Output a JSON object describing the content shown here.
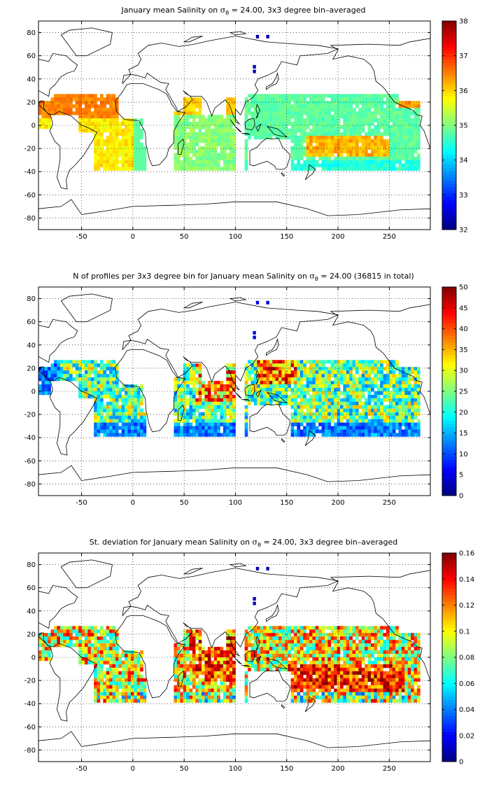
{
  "chart_data": [
    {
      "type": "heatmap",
      "title": {
        "pre": "January mean Salinity on ",
        "sym": "σ",
        "sub": "θ",
        "post": " = 24.00, 3x3 degree bin–averaged"
      },
      "x_ticks": [
        "-50",
        "0",
        "50",
        "100",
        "150",
        "200",
        "250"
      ],
      "y_ticks": [
        "80",
        "60",
        "40",
        "20",
        "0",
        "-20",
        "-40",
        "-60",
        "-80"
      ],
      "xlim": [
        -92,
        290
      ],
      "ylim": [
        -90,
        90
      ],
      "colorbar": {
        "min": 32,
        "max": 38,
        "ticks": [
          "38",
          "37",
          "36",
          "35",
          "34",
          "33",
          "32"
        ]
      },
      "colormap": "jet",
      "field": "salinity"
    },
    {
      "type": "heatmap",
      "title": {
        "pre": "N of profiles per 3x3 degree bin for January mean Salinity on ",
        "sym": "σ",
        "sub": "θ",
        "post": " = 24.00 (36815 in total)"
      },
      "x_ticks": [
        "-50",
        "0",
        "50",
        "100",
        "150",
        "200",
        "250"
      ],
      "y_ticks": [
        "80",
        "60",
        "40",
        "20",
        "0",
        "-20",
        "-40",
        "-60",
        "-80"
      ],
      "xlim": [
        -92,
        290
      ],
      "ylim": [
        -90,
        90
      ],
      "colorbar": {
        "min": 0,
        "max": 50,
        "ticks": [
          "50",
          "45",
          "40",
          "35",
          "30",
          "25",
          "20",
          "15",
          "10",
          "5",
          "0"
        ]
      },
      "colormap": "jet",
      "field": "count"
    },
    {
      "type": "heatmap",
      "title": {
        "pre": "St. deviation for January mean Salinity on ",
        "sym": "σ",
        "sub": "θ",
        "post": " = 24.00, 3x3 degree bin–averaged"
      },
      "x_ticks": [
        "-50",
        "0",
        "50",
        "100",
        "150",
        "200",
        "250"
      ],
      "y_ticks": [
        "80",
        "60",
        "40",
        "20",
        "0",
        "-20",
        "-40",
        "-60",
        "-80"
      ],
      "xlim": [
        -92,
        290
      ],
      "ylim": [
        -90,
        90
      ],
      "colorbar": {
        "min": 0,
        "max": 0.16,
        "ticks": [
          "0.16",
          "0.14",
          "0.12",
          "0.1",
          "0.08",
          "0.06",
          "0.04",
          "0.02",
          "0"
        ]
      },
      "colormap": "jet",
      "field": "stdev"
    }
  ]
}
